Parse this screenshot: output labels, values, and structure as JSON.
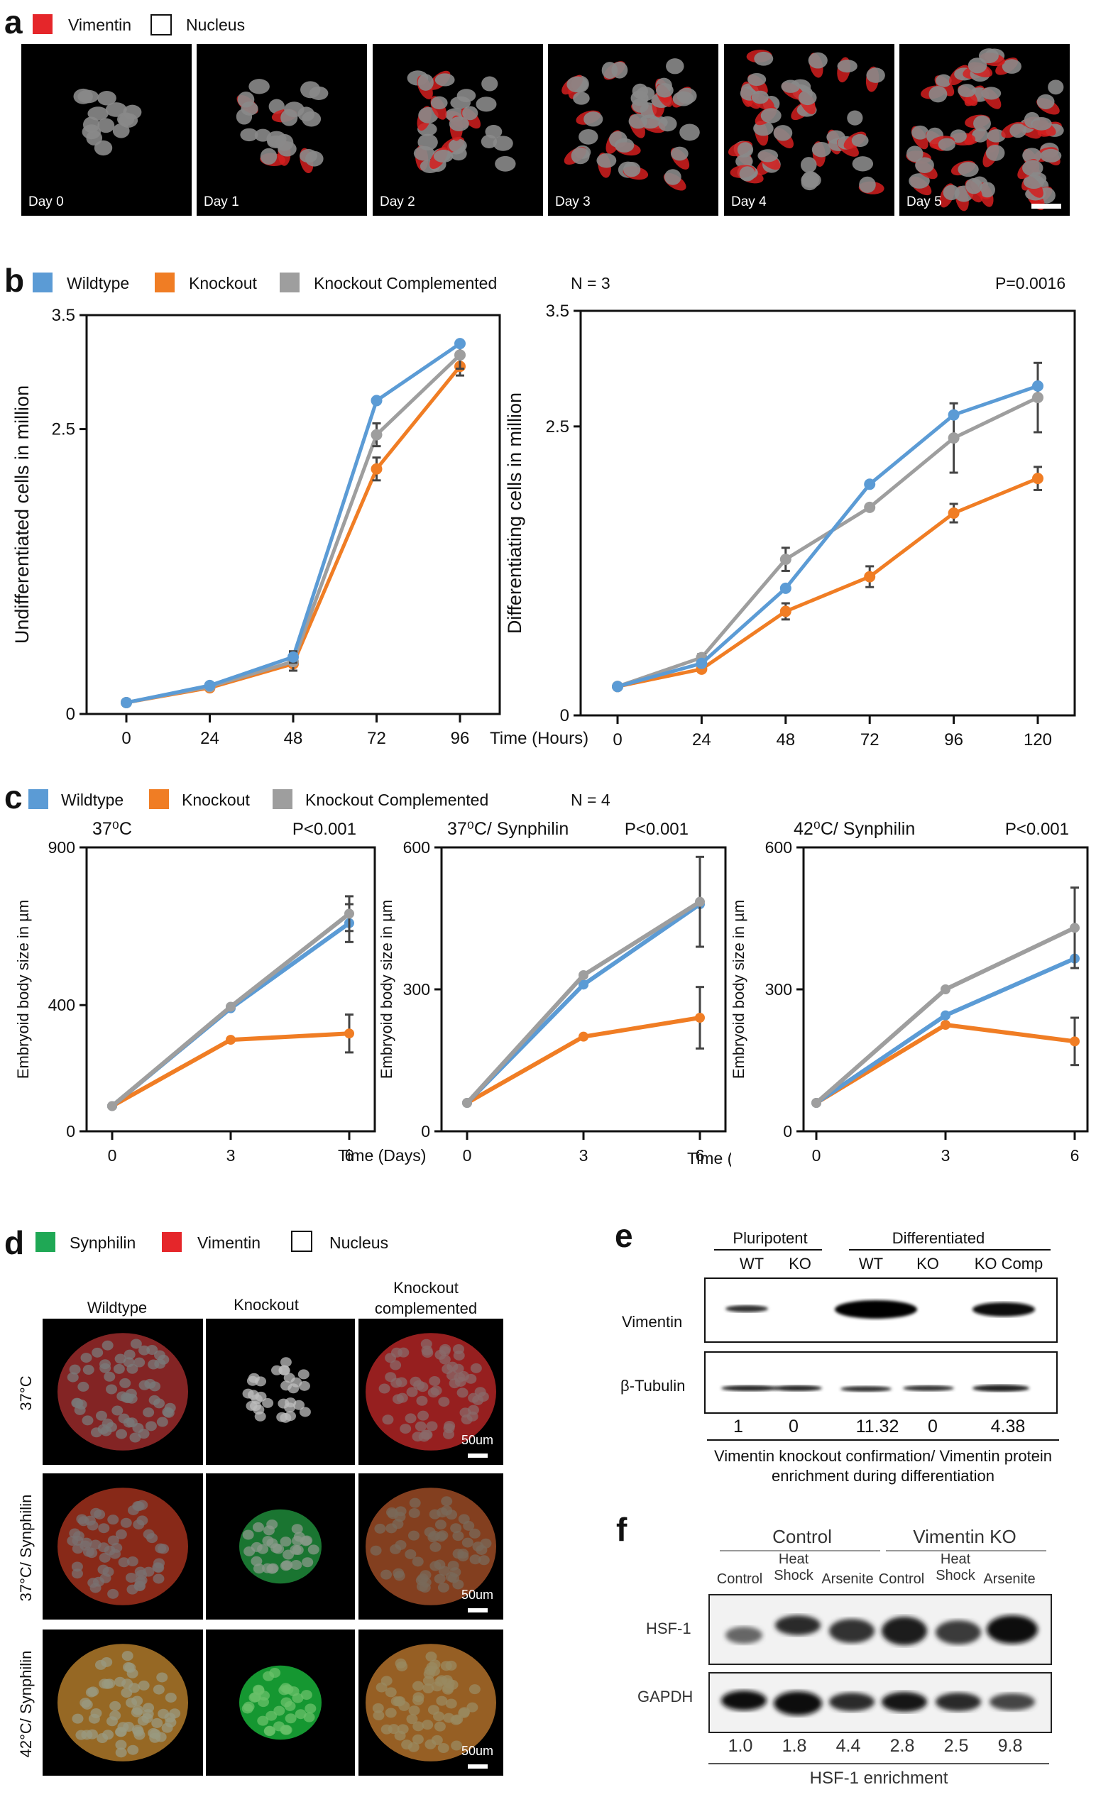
{
  "panel_a": {
    "letter": "a",
    "legend": [
      {
        "label": "Vimentin",
        "color": "#e5262a"
      },
      {
        "label": "Nucleus",
        "color": "#ffffff"
      }
    ],
    "days": [
      "Day 0",
      "Day 1",
      "Day 2",
      "Day 3",
      "Day 4",
      "Day 5"
    ]
  },
  "panel_b": {
    "letter": "b",
    "legend": [
      {
        "label": "Wildtype",
        "color": "#5b9bd5"
      },
      {
        "label": "Knockout",
        "color": "#f07d24"
      },
      {
        "label": "Knockout Complemented",
        "color": "#9e9e9e"
      }
    ],
    "n_label": "N = 3",
    "p_value": "P=0.0016"
  },
  "panel_c": {
    "letter": "c",
    "legend": [
      {
        "label": "Wildtype",
        "color": "#5b9bd5"
      },
      {
        "label": "Knockout",
        "color": "#f07d24"
      },
      {
        "label": "Knockout Complemented",
        "color": "#9e9e9e"
      }
    ],
    "n_label": "N = 4"
  },
  "panel_d": {
    "letter": "d",
    "legend": [
      {
        "label": "Synphilin",
        "color": "#1fa855"
      },
      {
        "label": "Vimentin",
        "color": "#e5262a"
      },
      {
        "label": "Nucleus",
        "color": "#ffffff"
      }
    ],
    "columns": [
      "Wildtype",
      "Knockout",
      "Knockout complemented"
    ],
    "rows": [
      "37°C",
      "37°C/ Synphilin",
      "42°C/ Synphilin"
    ],
    "scale": "50um"
  },
  "panel_e": {
    "letter": "e",
    "group_pluripotent": "Pluripotent",
    "group_differentiated": "Differentiated",
    "lanes": [
      "WT",
      "KO",
      "WT",
      "KO",
      "KO Comp"
    ],
    "rows": [
      "Vimentin",
      "β-Tubulin"
    ],
    "quant": [
      "1",
      "0",
      "11.32",
      "0",
      "4.38"
    ],
    "caption": "Vimentin knockout confirmation/ Vimentin protein enrichment during differentiation"
  },
  "panel_f": {
    "letter": "f",
    "group_control": "Control",
    "group_ko": "Vimentin KO",
    "lanes": [
      "Control",
      "Heat Shock",
      "Arsenite",
      "Control",
      "Heat Shock",
      "Arsenite"
    ],
    "rows": [
      "HSF-1",
      "GAPDH"
    ],
    "quant": [
      "1.0",
      "1.8",
      "4.4",
      "2.8",
      "2.5",
      "9.8"
    ],
    "caption": "HSF-1 enrichment"
  },
  "chart_data": [
    {
      "type": "line",
      "title": "",
      "xlabel": "Time (Hours)",
      "ylabel": "Undifferentiated cells in million",
      "x": [
        0,
        24,
        48,
        72,
        96
      ],
      "x_ticks": [
        "0",
        "24",
        "48",
        "72",
        "96"
      ],
      "ylim": [
        0,
        3.5
      ],
      "y_ticks": [
        "0",
        "2.5",
        "3.5"
      ],
      "series": [
        {
          "name": "Wildtype",
          "values": [
            0.1,
            0.25,
            0.5,
            2.75,
            3.25
          ],
          "errors": [
            0,
            0,
            0.05,
            0,
            0
          ]
        },
        {
          "name": "Knockout",
          "values": [
            0.1,
            0.23,
            0.44,
            2.15,
            3.05
          ],
          "errors": [
            0,
            0,
            0,
            0.1,
            0.08
          ]
        },
        {
          "name": "Knockout Complemented",
          "values": [
            0.1,
            0.24,
            0.46,
            2.45,
            3.15
          ],
          "errors": [
            0,
            0,
            0.08,
            0.1,
            0.12
          ]
        }
      ]
    },
    {
      "type": "line",
      "title": "",
      "xlabel": "Time (Hours)",
      "ylabel": "Differentiating cells in million",
      "x": [
        0,
        24,
        48,
        72,
        96,
        120
      ],
      "x_ticks": [
        "0",
        "24",
        "48",
        "72",
        "96",
        "120"
      ],
      "ylim": [
        0,
        3.5
      ],
      "y_ticks": [
        "0",
        "2.5",
        "3.5"
      ],
      "series": [
        {
          "name": "Wildtype",
          "values": [
            0.25,
            0.45,
            1.1,
            2.0,
            2.6,
            2.85
          ],
          "errors": [
            0,
            0,
            0,
            0,
            0,
            0
          ]
        },
        {
          "name": "Knockout",
          "values": [
            0.25,
            0.4,
            0.9,
            1.2,
            1.75,
            2.05
          ],
          "errors": [
            0,
            0,
            0.07,
            0.09,
            0.08,
            0.1
          ]
        },
        {
          "name": "Knockout Complemented",
          "values": [
            0.25,
            0.5,
            1.35,
            1.8,
            2.4,
            2.75
          ],
          "errors": [
            0,
            0.03,
            0.1,
            0,
            0.3,
            0.3
          ]
        }
      ]
    },
    {
      "type": "line",
      "title": "37⁰C",
      "p_value": "P<0.001",
      "xlabel": "Time (Days)",
      "ylabel": "Embryoid body size in µm",
      "x": [
        0,
        3,
        6
      ],
      "x_ticks": [
        "0",
        "3",
        "6"
      ],
      "ylim": [
        0,
        900
      ],
      "y_ticks": [
        "0",
        "400",
        "900"
      ],
      "series": [
        {
          "name": "Wildtype",
          "values": [
            80,
            390,
            660
          ],
          "errors": [
            0,
            0,
            60
          ]
        },
        {
          "name": "Knockout",
          "values": [
            80,
            290,
            310
          ],
          "errors": [
            0,
            0,
            60
          ]
        },
        {
          "name": "Knockout Complemented",
          "values": [
            80,
            395,
            690
          ],
          "errors": [
            0,
            0,
            55
          ]
        }
      ]
    },
    {
      "type": "line",
      "title": "37⁰C/ Synphilin",
      "p_value": "P<0.001",
      "xlabel": "",
      "ylabel": "Embryoid body size in µm",
      "x": [
        0,
        3,
        6
      ],
      "x_ticks": [
        "0",
        "3",
        "6"
      ],
      "ylim": [
        0,
        600
      ],
      "y_ticks": [
        "0",
        "300",
        "600"
      ],
      "series": [
        {
          "name": "Wildtype",
          "values": [
            60,
            310,
            480
          ],
          "errors": [
            0,
            0,
            0
          ]
        },
        {
          "name": "Knockout",
          "values": [
            60,
            200,
            240
          ],
          "errors": [
            0,
            0,
            65
          ]
        },
        {
          "name": "Knockout Complemented",
          "values": [
            60,
            330,
            485
          ],
          "errors": [
            0,
            0,
            95
          ]
        }
      ]
    },
    {
      "type": "line",
      "title": "42⁰C/ Synphilin",
      "p_value": "P<0.001",
      "xlabel": "Time (Days)",
      "ylabel": "Embryoid body size in µm",
      "x": [
        0,
        3,
        6
      ],
      "x_ticks": [
        "0",
        "3",
        "6"
      ],
      "ylim": [
        0,
        600
      ],
      "y_ticks": [
        "0",
        "300",
        "600"
      ],
      "series": [
        {
          "name": "Wildtype",
          "values": [
            60,
            245,
            365
          ],
          "errors": [
            0,
            0,
            0
          ]
        },
        {
          "name": "Knockout",
          "values": [
            60,
            225,
            190
          ],
          "errors": [
            0,
            0,
            50
          ]
        },
        {
          "name": "Knockout Complemented",
          "values": [
            60,
            300,
            430
          ],
          "errors": [
            0,
            0,
            85
          ]
        }
      ]
    }
  ]
}
